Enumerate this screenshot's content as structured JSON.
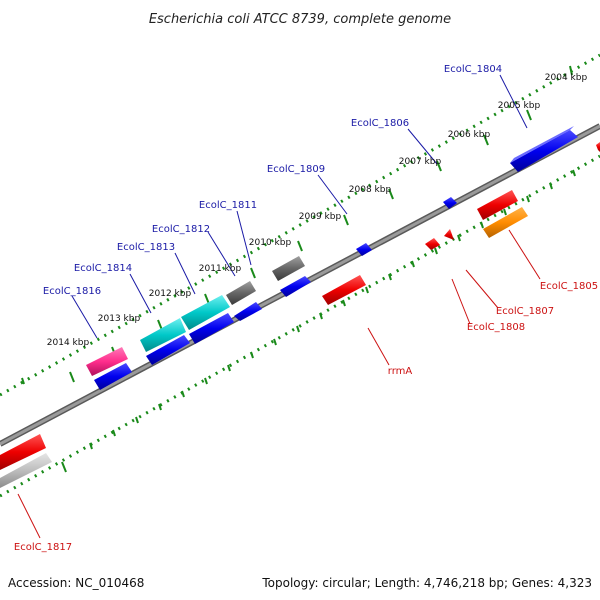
{
  "title": "Escherichia coli ATCC 8739, complete genome",
  "footer": {
    "accession": "Accession: NC_010468",
    "summary": "Topology: circular; Length: 4,746,218 bp; Genes: 4,323"
  },
  "scale_labels": [
    "2004 kbp",
    "2005 kbp",
    "2006 kbp",
    "2007 kbp",
    "2008 kbp",
    "2009 kbp",
    "2010 kbp",
    "2011 kbp",
    "2012 kbp",
    "2013 kbp",
    "2014 kbp"
  ],
  "top_gene_labels": [
    "EcolC_1804",
    "EcolC_1806",
    "EcolC_1809",
    "EcolC_1811",
    "EcolC_1812",
    "EcolC_1813",
    "EcolC_1814",
    "EcolC_1816"
  ],
  "bottom_gene_labels": [
    "EcolC_1805",
    "EcolC_1807",
    "EcolC_1808",
    "rrmA",
    "EcolC_1817"
  ],
  "colors": {
    "cds": "#0000ee",
    "rna": "#ee0000",
    "trna": "#00c8c8",
    "pseudo": "#ff2d8c",
    "misc": "#666666",
    "orange": "#ff8c00",
    "ruler": "#1a8a1a",
    "backbone": "#808080",
    "top_label": "#1a1aa6",
    "bottom_label": "#cc1111"
  }
}
